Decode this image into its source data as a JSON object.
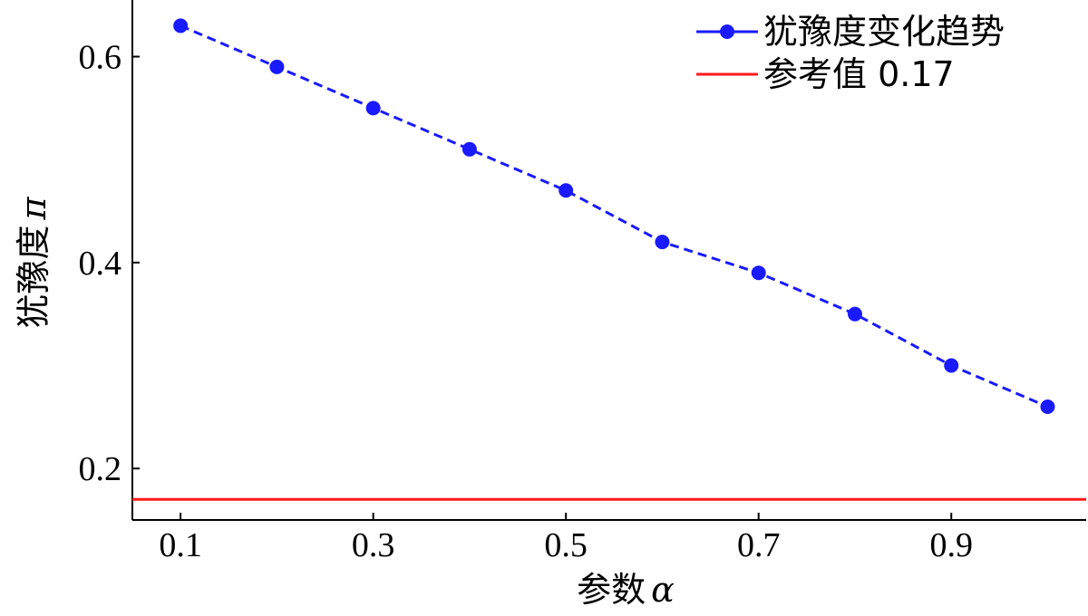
{
  "chart_data": {
    "type": "line",
    "x": [
      0.1,
      0.2,
      0.3,
      0.4,
      0.5,
      0.6,
      0.7,
      0.8,
      0.9,
      1.0
    ],
    "series": [
      {
        "name": "犹豫度变化趋势",
        "values": [
          0.63,
          0.59,
          0.55,
          0.51,
          0.47,
          0.42,
          0.39,
          0.35,
          0.3,
          0.26
        ],
        "color": "#1a1aff",
        "style": "dashed-with-markers"
      },
      {
        "name": "参考值 0.17",
        "values": [
          0.17,
          0.17,
          0.17,
          0.17,
          0.17,
          0.17,
          0.17,
          0.17,
          0.17,
          0.17
        ],
        "color": "#ff1a1a",
        "style": "solid-horizontal"
      }
    ],
    "xlabel": "参数",
    "xlabel_symbol": "α",
    "ylabel": "犹豫度",
    "ylabel_symbol": "π",
    "xticks": [
      0.1,
      0.3,
      0.5,
      0.7,
      0.9
    ],
    "xtick_labels": [
      "0.1",
      "0.3",
      "0.5",
      "0.7",
      "0.9"
    ],
    "yticks": [
      0.2,
      0.4,
      0.6
    ],
    "ytick_labels": [
      "0.2",
      "0.4",
      "0.6"
    ],
    "xlim": [
      0.05,
      1.04
    ],
    "ylim": [
      0.15,
      0.655
    ],
    "grid": false,
    "legend_position": "top-right"
  }
}
